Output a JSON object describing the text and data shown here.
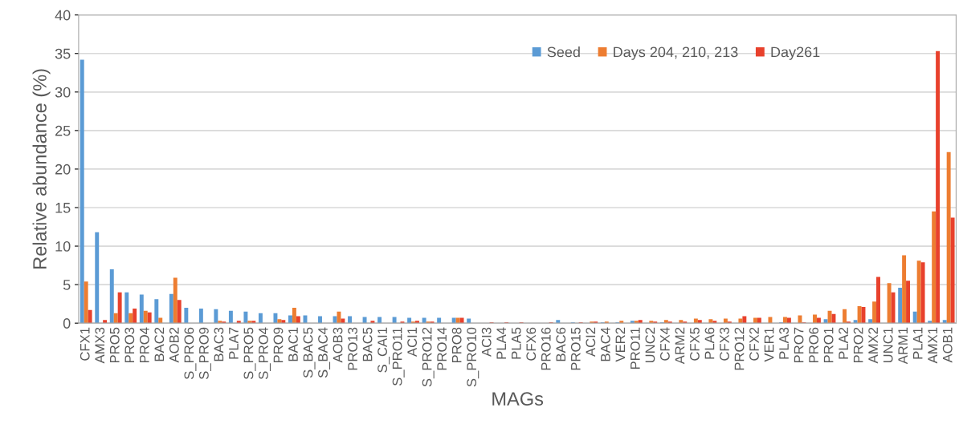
{
  "chart_data": {
    "type": "bar",
    "xlabel": "MAGs",
    "ylabel": "Relative abundance (%)",
    "categories": [
      "CFX1",
      "AMX3",
      "PRO5",
      "PRO3",
      "PRO4",
      "BAC2",
      "AOB2",
      "S_PRO6",
      "S_PRO9",
      "BAC3",
      "PLA7",
      "S_PRO5",
      "S_PRO4",
      "PRO9",
      "BAC1",
      "S_BAC5",
      "S_BAC4",
      "AOB3",
      "PRO13",
      "BAC5",
      "S_CAI1",
      "S_PRO11",
      "ACI1",
      "S_PRO12",
      "PRO14",
      "PRO8",
      "S_PRO10",
      "ACI3",
      "PLA4",
      "PLA5",
      "CFX6",
      "PRO16",
      "BAC6",
      "PRO15",
      "ACI2",
      "BAC4",
      "VER2",
      "PRO11",
      "UNC2",
      "CFX4",
      "ARM2",
      "CFX5",
      "PLA6",
      "CFX3",
      "PRO12",
      "CFX2",
      "VER1",
      "PLA3",
      "PRO7",
      "PRO6",
      "PRO1",
      "PLA2",
      "PRO2",
      "AMX2",
      "UNC1",
      "ARM1",
      "PLA1",
      "AMX1",
      "AOB1"
    ],
    "series": [
      {
        "name": "Seed",
        "color": "#5b9bd5",
        "values": [
          34.2,
          11.8,
          7.0,
          4.0,
          3.7,
          3.1,
          3.8,
          2.0,
          1.9,
          1.8,
          1.6,
          1.5,
          1.3,
          1.3,
          1.0,
          1.0,
          0.9,
          0.9,
          0.9,
          0.8,
          0.8,
          0.8,
          0.7,
          0.7,
          0.7,
          0.7,
          0.6,
          0,
          0,
          0,
          0,
          0,
          0.4,
          0.1,
          0,
          0.1,
          0.1,
          0.3,
          0,
          0.1,
          0,
          0,
          0,
          0,
          0,
          0,
          0,
          0.1,
          0,
          0,
          0.5,
          0,
          0.4,
          0.5,
          0,
          4.6,
          1.5,
          0.3,
          0.4
        ]
      },
      {
        "name": "Days 204, 210, 213",
        "color": "#ed7d31",
        "values": [
          5.4,
          0,
          1.3,
          1.3,
          1.6,
          0.7,
          5.9,
          0,
          0,
          0.3,
          0,
          0.3,
          0,
          0.5,
          2.0,
          0,
          0,
          1.5,
          0,
          0,
          0,
          0,
          0.2,
          0.2,
          0,
          0.7,
          0,
          0,
          0,
          0,
          0,
          0,
          0,
          0,
          0.2,
          0.2,
          0.3,
          0.3,
          0.3,
          0.4,
          0.4,
          0.6,
          0.5,
          0.6,
          0.6,
          0.7,
          0.8,
          0.8,
          1.0,
          1.1,
          1.6,
          1.8,
          2.2,
          2.8,
          5.2,
          8.8,
          8.1,
          14.5,
          22.2
        ]
      },
      {
        "name": "Day261",
        "color": "#e8412c",
        "values": [
          1.7,
          0.4,
          4.0,
          1.9,
          1.4,
          0,
          3.0,
          0,
          0,
          0.2,
          0.3,
          0.3,
          0,
          0.4,
          0.9,
          0,
          0,
          0.6,
          0,
          0.3,
          0,
          0.2,
          0.3,
          0.2,
          0,
          0.7,
          0,
          0.1,
          0.1,
          0.1,
          0,
          0.1,
          0,
          0.1,
          0.2,
          0,
          0,
          0.4,
          0.2,
          0.2,
          0.2,
          0.4,
          0.3,
          0.2,
          0.9,
          0.7,
          0,
          0.7,
          0.1,
          0.7,
          1.2,
          0.2,
          2.1,
          6.0,
          4.0,
          5.5,
          7.9,
          35.3,
          13.7
        ]
      }
    ],
    "ylim": [
      0,
      40
    ],
    "yticks": [
      0,
      5,
      10,
      15,
      20,
      25,
      30,
      35,
      40
    ],
    "grid": "y",
    "legend": "top right"
  }
}
